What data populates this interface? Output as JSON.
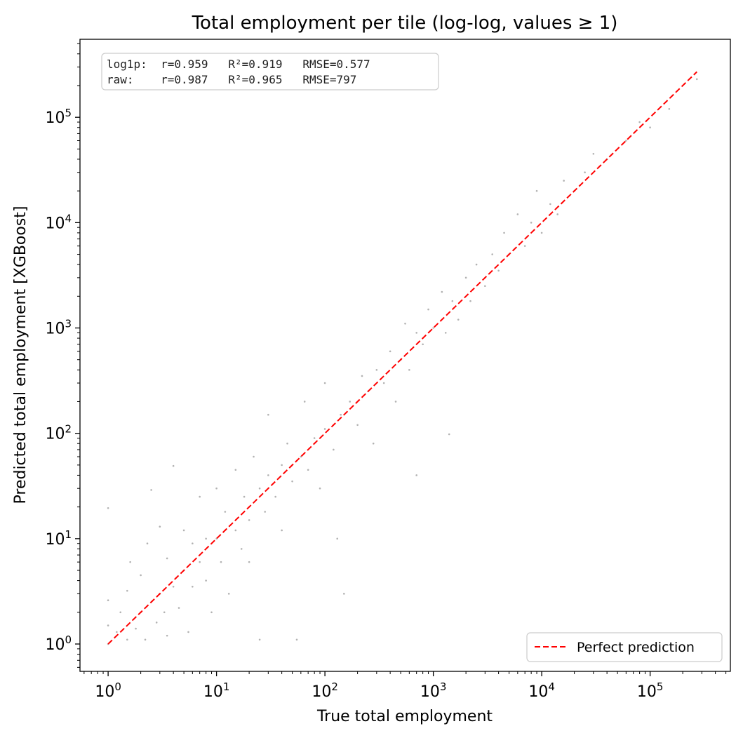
{
  "chart_data": {
    "type": "scatter",
    "title": "Total employment per tile (log-log, values ≥ 1)",
    "xlabel": "True total employment",
    "ylabel": "Predicted total employment  [XGBoost]",
    "xscale": "log",
    "yscale": "log",
    "xlim": [
      0.55,
      550000
    ],
    "ylim": [
      0.55,
      550000
    ],
    "x_ticks": [
      {
        "base": "10",
        "exp": "0",
        "value": 1
      },
      {
        "base": "10",
        "exp": "1",
        "value": 10
      },
      {
        "base": "10",
        "exp": "2",
        "value": 100
      },
      {
        "base": "10",
        "exp": "3",
        "value": 1000
      },
      {
        "base": "10",
        "exp": "4",
        "value": 10000
      },
      {
        "base": "10",
        "exp": "5",
        "value": 100000
      }
    ],
    "y_ticks": [
      {
        "base": "10",
        "exp": "0",
        "value": 1
      },
      {
        "base": "10",
        "exp": "1",
        "value": 10
      },
      {
        "base": "10",
        "exp": "2",
        "value": 100
      },
      {
        "base": "10",
        "exp": "3",
        "value": 1000
      },
      {
        "base": "10",
        "exp": "4",
        "value": 10000
      },
      {
        "base": "10",
        "exp": "5",
        "value": 100000
      }
    ],
    "stats_lines": [
      "log1p:  r=0.959   R²=0.919   RMSE=0.577",
      "raw:    r=0.987   R²=0.965   RMSE=797"
    ],
    "stats": {
      "log1p": {
        "r": 0.959,
        "r2": 0.919,
        "rmse": 0.577
      },
      "raw": {
        "r": 0.987,
        "r2": 0.965,
        "rmse": 797
      }
    },
    "reference_line": {
      "name": "Perfect prediction",
      "x": [
        1,
        270000
      ],
      "y": [
        1,
        270000
      ],
      "style": "dashed",
      "color": "#ff0000"
    },
    "legend": {
      "entries": [
        "Perfect prediction"
      ],
      "placement": "lower right"
    },
    "point_color": "#000000",
    "point_alpha": 0.3,
    "grid": false,
    "series": [
      {
        "points": [
          [
            1.0,
            1.0
          ],
          [
            1.0,
            1.5
          ],
          [
            1.0,
            2.6
          ],
          [
            1.0,
            19.5
          ],
          [
            1.2,
            1.3
          ],
          [
            1.3,
            2.0
          ],
          [
            1.5,
            1.1
          ],
          [
            1.5,
            3.2
          ],
          [
            1.6,
            6.0
          ],
          [
            1.8,
            1.4
          ],
          [
            2.0,
            2.0
          ],
          [
            2.0,
            4.5
          ],
          [
            2.2,
            1.1
          ],
          [
            2.3,
            9.0
          ],
          [
            2.5,
            2.5
          ],
          [
            2.5,
            29.0
          ],
          [
            2.8,
            1.6
          ],
          [
            3.0,
            3.0
          ],
          [
            3.0,
            13.0
          ],
          [
            3.3,
            2.0
          ],
          [
            3.5,
            1.2
          ],
          [
            3.5,
            6.5
          ],
          [
            4.0,
            3.5
          ],
          [
            4.0,
            49.0
          ],
          [
            4.5,
            2.2
          ],
          [
            5.0,
            5.0
          ],
          [
            5.0,
            12.0
          ],
          [
            5.5,
            1.3
          ],
          [
            6.0,
            3.5
          ],
          [
            6.0,
            9.0
          ],
          [
            7.0,
            6.0
          ],
          [
            7.0,
            25.0
          ],
          [
            8.0,
            4.0
          ],
          [
            8.0,
            10.0
          ],
          [
            9.0,
            2.0
          ],
          [
            10.0,
            10.0
          ],
          [
            10.0,
            30.0
          ],
          [
            11.0,
            6.0
          ],
          [
            12.0,
            18.0
          ],
          [
            13.0,
            3.0
          ],
          [
            15.0,
            12.0
          ],
          [
            15.0,
            45.0
          ],
          [
            17.0,
            8.0
          ],
          [
            18.0,
            25.0
          ],
          [
            20.0,
            15.0
          ],
          [
            20.0,
            6.0
          ],
          [
            22.0,
            60.0
          ],
          [
            25.0,
            30.0
          ],
          [
            25.0,
            1.1
          ],
          [
            28.0,
            18.0
          ],
          [
            30.0,
            40.0
          ],
          [
            30.0,
            150.0
          ],
          [
            35.0,
            25.0
          ],
          [
            40.0,
            50.0
          ],
          [
            40.0,
            12.0
          ],
          [
            45.0,
            80.0
          ],
          [
            50.0,
            35.0
          ],
          [
            55.0,
            1.1
          ],
          [
            60.0,
            60.0
          ],
          [
            65.0,
            200.0
          ],
          [
            70.0,
            45.0
          ],
          [
            80.0,
            90.0
          ],
          [
            90.0,
            30.0
          ],
          [
            100.0,
            110.0
          ],
          [
            100.0,
            300.0
          ],
          [
            120.0,
            70.0
          ],
          [
            130.0,
            10.0
          ],
          [
            140.0,
            150.0
          ],
          [
            150.0,
            3.0
          ],
          [
            170.0,
            200.0
          ],
          [
            200.0,
            120.0
          ],
          [
            220.0,
            350.0
          ],
          [
            250.0,
            250.0
          ],
          [
            280.0,
            80.0
          ],
          [
            300.0,
            400.0
          ],
          [
            350.0,
            300.0
          ],
          [
            400.0,
            600.0
          ],
          [
            450.0,
            200.0
          ],
          [
            500.0,
            500.0
          ],
          [
            550.0,
            1100.0
          ],
          [
            600.0,
            400.0
          ],
          [
            700.0,
            40.0
          ],
          [
            700.0,
            900.0
          ],
          [
            800.0,
            700.0
          ],
          [
            900.0,
            1500.0
          ],
          [
            1000.0,
            1000.0
          ],
          [
            1200.0,
            2200.0
          ],
          [
            1300.0,
            900.0
          ],
          [
            1400.0,
            98.0
          ],
          [
            1500.0,
            1800.0
          ],
          [
            1700.0,
            1200.0
          ],
          [
            2000.0,
            3000.0
          ],
          [
            2200.0,
            1800.0
          ],
          [
            2500.0,
            4000.0
          ],
          [
            3000.0,
            2500.0
          ],
          [
            3500.0,
            5000.0
          ],
          [
            4000.0,
            3500.0
          ],
          [
            4500.0,
            8000.0
          ],
          [
            5000.0,
            5000.0
          ],
          [
            6000.0,
            12000.0
          ],
          [
            7000.0,
            6000.0
          ],
          [
            8000.0,
            10000.0
          ],
          [
            9000.0,
            20000.0
          ],
          [
            10000.0,
            8000.0
          ],
          [
            12000.0,
            15000.0
          ],
          [
            14000.0,
            12000.0
          ],
          [
            16000.0,
            25000.0
          ],
          [
            20000.0,
            20000.0
          ],
          [
            25000.0,
            30000.0
          ],
          [
            30000.0,
            45000.0
          ],
          [
            40000.0,
            40000.0
          ],
          [
            60000.0,
            60000.0
          ],
          [
            80000.0,
            90000.0
          ],
          [
            100000.0,
            80000.0
          ],
          [
            150000.0,
            120000.0
          ],
          [
            270000.0,
            230000.0
          ]
        ]
      }
    ]
  }
}
